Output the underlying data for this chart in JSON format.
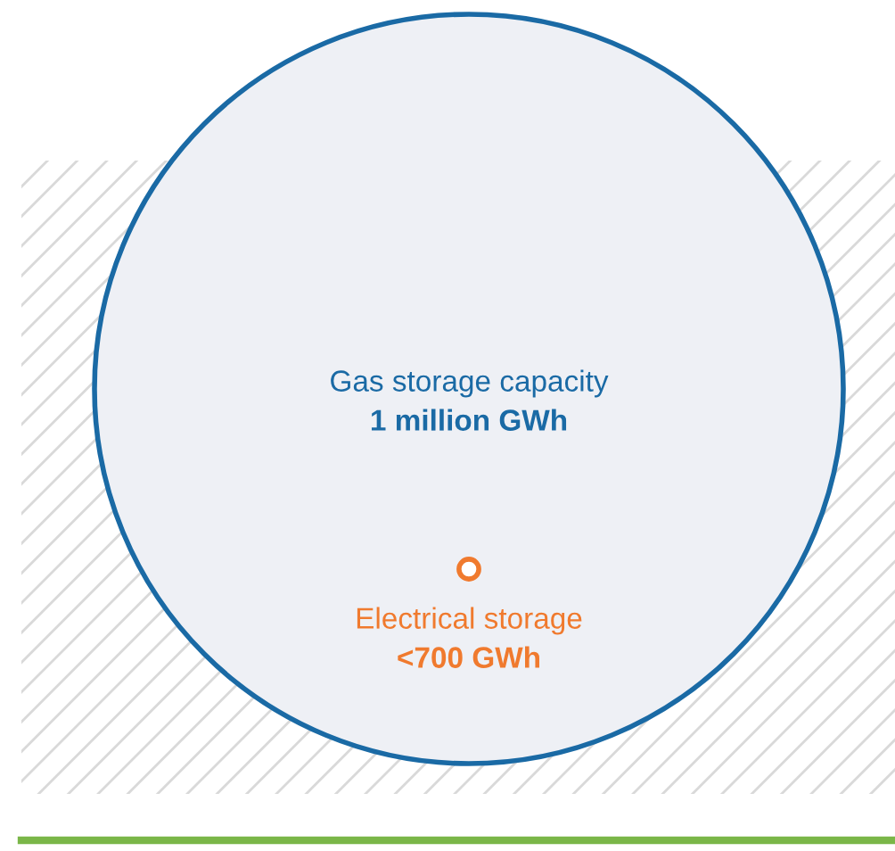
{
  "chart_data": {
    "type": "other",
    "categories": [
      "Gas storage capacity",
      "Electrical storage"
    ],
    "values": [
      1000000,
      700
    ],
    "value_labels": [
      "1 million GWh",
      "<700 GWh"
    ],
    "colors": [
      "#1a6aa5",
      "#f07a2e"
    ]
  }
}
